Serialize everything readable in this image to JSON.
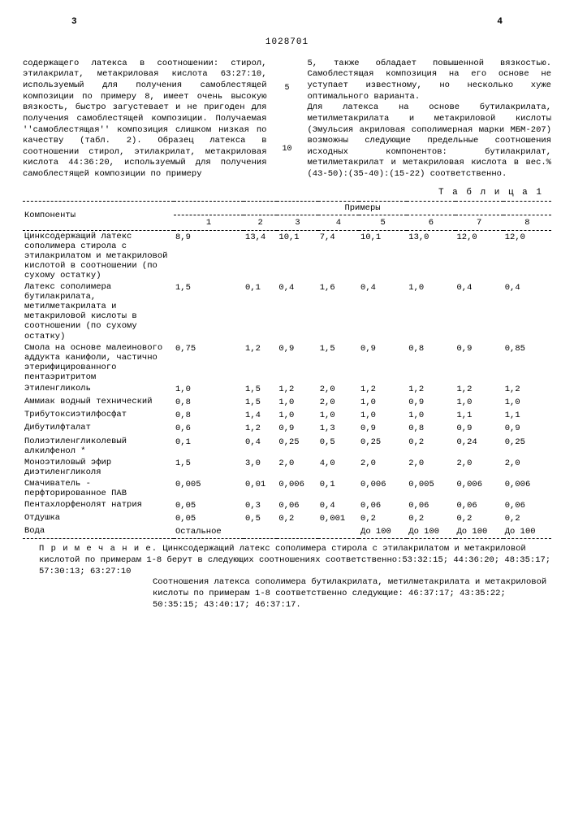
{
  "pageLeft": "3",
  "pageRight": "4",
  "docId": "1028701",
  "colLeft": "содержащего латекса в соотношении: стирол, этилакрилат, метакриловая кислота 63:27:10, используемый для получения самоблестящей композиции по примеру 8, имеет очень высокую вязкость, быстро загустевает и не пригоден для получения самоблестящей композиции. Получаемая ''самоблестящая'' композиция слишком низкая по качеству (табл. 2). Образец латекса в соотношении стирол, этилакрилат, метакриловая кислота 44:36:20, используемый для получения самоблестящей композиции по примеру",
  "colRight": "5, также обладает повышенной вязкостью. Самоблестящая композиция на его основе не уступает известному, но несколько хуже оптимального варианта.\nДля латекса на основе бутилакрилата, метилметакрилата и метакриловой кислоты (Эмульсия акриловая сополимерная марки МБМ-207) возможны следующие предельные соотношения исходных компонентов: бутилакрилат, метилметакрилат и метакриловая кислота в вес.% (43-50):(35-40):(15-22) соответственно.",
  "lineMark1": "5",
  "lineMark2": "10",
  "tableLabel": "Т а б л и ц а 1",
  "th": {
    "components": "Компоненты",
    "examples": "Примеры",
    "c1": "1",
    "c2": "2",
    "c3": "3",
    "c4": "4",
    "c5": "5",
    "c6": "6",
    "c7": "7",
    "c8": "8"
  },
  "rows": [
    {
      "name": "Цинксодержащий латекс сополимера стирола с этилакрилатом и метакриловой кислотой в соотношении (по сухому остатку)",
      "v": [
        "8,9",
        "13,4",
        "10,1",
        "7,4",
        "10,1",
        "13,0",
        "12,0",
        "12,0"
      ]
    },
    {
      "name": "Латекс сополимера бутилакрилата, метилметакрилата и метакриловой кислоты в соотношении (по сухому остатку)",
      "v": [
        "1,5",
        "0,1",
        "0,4",
        "1,6",
        "0,4",
        "1,0",
        "0,4",
        "0,4"
      ]
    },
    {
      "name": "Смола на основе малеинового аддукта канифоли, частично этерифицированного пентаэритритом",
      "v": [
        "0,75",
        "1,2",
        "0,9",
        "1,5",
        "0,9",
        "0,8",
        "0,9",
        "0,85"
      ]
    },
    {
      "name": "Этиленгликоль",
      "v": [
        "1,0",
        "1,5",
        "1,2",
        "2,0",
        "1,2",
        "1,2",
        "1,2",
        "1,2"
      ]
    },
    {
      "name": "Аммиак водный технический",
      "v": [
        "0,8",
        "1,5",
        "1,0",
        "2,0",
        "1,0",
        "0,9",
        "1,0",
        "1,0"
      ]
    },
    {
      "name": "Трибутоксиэтилфосфат",
      "v": [
        "0,8",
        "1,4",
        "1,0",
        "1,0",
        "1,0",
        "1,0",
        "1,1",
        "1,1"
      ]
    },
    {
      "name": "Дибутилфталат",
      "v": [
        "0,6",
        "1,2",
        "0,9",
        "1,3",
        "0,9",
        "0,8",
        "0,9",
        "0,9"
      ]
    },
    {
      "name": "Полиэтиленгликолевый алкилфенол *",
      "v": [
        "0,1",
        "0,4",
        "0,25",
        "0,5",
        "0,25",
        "0,2",
        "0,24",
        "0,25"
      ]
    },
    {
      "name": "Моноэтиловый эфир диэтиленгликоля",
      "v": [
        "1,5",
        "3,0",
        "2,0",
        "4,0",
        "2,0",
        "2,0",
        "2,0",
        "2,0"
      ]
    },
    {
      "name": "Смачиватель - перфторированное ПАВ",
      "v": [
        "0,005",
        "0,01",
        "0,006",
        "0,1",
        "0,006",
        "0,005",
        "0,006",
        "0,006"
      ]
    },
    {
      "name": "Пентахлорфенолят натрия",
      "v": [
        "0,05",
        "0,3",
        "0,06",
        "0,4",
        "0,06",
        "0,06",
        "0,06",
        "0,06"
      ]
    },
    {
      "name": "Отдушка",
      "v": [
        "0,05",
        "0,5",
        "0,2",
        "0,001",
        "0,2",
        "0,2",
        "0,2",
        "0,2"
      ]
    },
    {
      "name": "Вода",
      "v": [
        "Остальное",
        "",
        "",
        "",
        "До 100",
        "До 100",
        "До 100",
        "До 100"
      ]
    }
  ],
  "noteLabel": "П р и м е ч а н и е.",
  "note1": "Цинксодержащий латекс сополимера стирола с этилакрилатом и метакриловой кислотой по примерам 1-8 берут в следующих соотношениях соответственно:53:32:15; 44:36:20; 48:35:17; 57:30:13; 63:27:10",
  "note2": "Соотношения латекса сополимера бутилакрилата, метилметакрилата и  метакриловой кислоты по примерам 1-8 соответственно следующие: 46:37:17; 43:35:22; 50:35:15; 43:40:17; 46:37:17."
}
